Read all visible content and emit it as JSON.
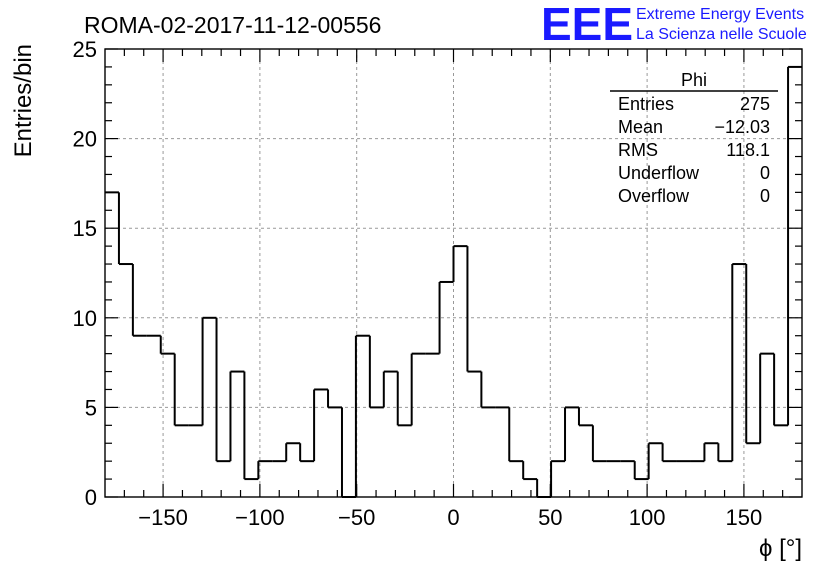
{
  "header": {
    "run_title": "ROMA-02-2017-11-12-00556",
    "logo_text": "EEE",
    "logo_line1": "Extreme Energy Events",
    "logo_line2": "La Scienza nelle Scuole",
    "logo_color": "#1a1aff"
  },
  "stats_box": {
    "title": "Phi",
    "rows": [
      {
        "label": "Entries",
        "value": "275"
      },
      {
        "label": "Mean",
        "value": "−12.03"
      },
      {
        "label": "RMS",
        "value": "118.1"
      },
      {
        "label": "Underflow",
        "value": "0"
      },
      {
        "label": "Overflow",
        "value": "0"
      }
    ]
  },
  "chart_data": {
    "type": "bar",
    "style": "step-histogram",
    "xlabel": "ϕ [°]",
    "ylabel": "Entries/bin",
    "xlim": [
      -180,
      180
    ],
    "ylim": [
      0,
      25
    ],
    "bin_width": 7.2,
    "x_ticks": [
      -150,
      -100,
      -50,
      0,
      50,
      100,
      150
    ],
    "x_tick_labels": [
      "−150",
      "−100",
      "−50",
      "0",
      "50",
      "100",
      "150"
    ],
    "y_ticks": [
      0,
      5,
      10,
      15,
      20,
      25
    ],
    "y_tick_labels": [
      "0",
      "5",
      "10",
      "15",
      "20",
      "25"
    ],
    "grid": true,
    "values": [
      17,
      13,
      9,
      9,
      8,
      4,
      4,
      10,
      2,
      7,
      1,
      2,
      2,
      3,
      2,
      6,
      5,
      0,
      9,
      5,
      7,
      4,
      8,
      8,
      12,
      14,
      7,
      5,
      5,
      2,
      1,
      0,
      2,
      5,
      4,
      2,
      2,
      2,
      1,
      3,
      2,
      2,
      2,
      3,
      2,
      13,
      3,
      8,
      4,
      24
    ],
    "line_color": "#000000"
  }
}
